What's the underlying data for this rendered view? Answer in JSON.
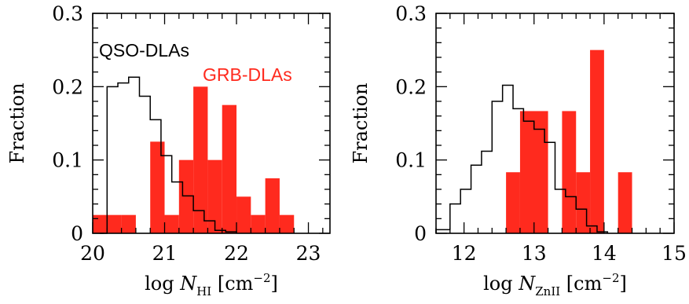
{
  "chart_data": [
    {
      "type": "histogram",
      "ylabel": "Fraction",
      "xlabel": {
        "prefix": "log ",
        "var": "N",
        "sub": "HI",
        "unit_open": " [cm",
        "sup": "−2",
        "unit_close": "]"
      },
      "xlim": [
        20,
        23.3
      ],
      "ylim": [
        0,
        0.3
      ],
      "xticks": [
        "20",
        "21",
        "22",
        "23"
      ],
      "yticks": [
        "0",
        "0.1",
        "0.2",
        "0.3"
      ],
      "legend": [
        {
          "name": "QSO-DLAs",
          "color": "#000000"
        },
        {
          "name": "GRB-DLAs",
          "color": "#ff2a1e"
        }
      ],
      "series": [
        {
          "name": "QSO-DLAs",
          "style": "step",
          "color": "#000000",
          "bins": [
            [
              20.1,
              20.2,
              0.0
            ],
            [
              20.2,
              20.35,
              0.2
            ],
            [
              20.35,
              20.5,
              0.205
            ],
            [
              20.5,
              20.65,
              0.213
            ],
            [
              20.65,
              20.8,
              0.187
            ],
            [
              20.8,
              20.95,
              0.155
            ],
            [
              20.95,
              21.1,
              0.106
            ],
            [
              21.1,
              21.25,
              0.07
            ],
            [
              21.25,
              21.4,
              0.051
            ],
            [
              21.4,
              21.55,
              0.031
            ],
            [
              21.55,
              21.7,
              0.017
            ],
            [
              21.7,
              21.85,
              0.004
            ],
            [
              21.85,
              22.0,
              0.002
            ]
          ]
        },
        {
          "name": "GRB-DLAs",
          "style": "filled",
          "color": "#ff2a1e",
          "bins": [
            [
              20.0,
              20.4,
              0.025
            ],
            [
              20.4,
              20.6,
              0.025
            ],
            [
              20.8,
              21.0,
              0.125
            ],
            [
              21.0,
              21.2,
              0.025
            ],
            [
              21.2,
              21.4,
              0.1
            ],
            [
              21.4,
              21.6,
              0.2
            ],
            [
              21.6,
              21.8,
              0.1
            ],
            [
              21.8,
              22.0,
              0.175
            ],
            [
              22.0,
              22.2,
              0.05
            ],
            [
              22.2,
              22.4,
              0.025
            ],
            [
              22.4,
              22.6,
              0.075
            ],
            [
              22.6,
              22.8,
              0.025
            ]
          ]
        }
      ]
    },
    {
      "type": "histogram",
      "ylabel": "Fraction",
      "xlabel": {
        "prefix": "log ",
        "var": "N",
        "sub": "ZnII",
        "unit_open": " [cm",
        "sup": "−2",
        "unit_close": "]"
      },
      "xlim": [
        11.6,
        15
      ],
      "ylim": [
        0,
        0.3
      ],
      "xticks": [
        "12",
        "13",
        "14",
        "15"
      ],
      "yticks": [
        "0",
        "0.1",
        "0.2",
        "0.3"
      ],
      "series": [
        {
          "name": "QSO-DLAs",
          "style": "step",
          "color": "#000000",
          "bins": [
            [
              11.6,
              11.8,
              0.005
            ],
            [
              11.8,
              11.95,
              0.04
            ],
            [
              11.95,
              12.1,
              0.06
            ],
            [
              12.1,
              12.25,
              0.093
            ],
            [
              12.25,
              12.4,
              0.112
            ],
            [
              12.4,
              12.55,
              0.18
            ],
            [
              12.55,
              12.7,
              0.202
            ],
            [
              12.7,
              12.85,
              0.17
            ],
            [
              12.85,
              13.0,
              0.153
            ],
            [
              13.0,
              13.15,
              0.142
            ],
            [
              13.15,
              13.3,
              0.124
            ],
            [
              13.3,
              13.45,
              0.06
            ],
            [
              13.45,
              13.6,
              0.05
            ],
            [
              13.6,
              13.75,
              0.033
            ],
            [
              13.75,
              13.9,
              0.01
            ],
            [
              13.9,
              14.05,
              0.002
            ]
          ]
        },
        {
          "name": "GRB-DLAs",
          "style": "filled",
          "color": "#ff2a1e",
          "bins": [
            [
              12.6,
              12.8,
              0.0833
            ],
            [
              12.8,
              13.2,
              0.1667
            ],
            [
              13.4,
              13.6,
              0.1667
            ],
            [
              13.6,
              13.8,
              0.0833
            ],
            [
              13.8,
              14.0,
              0.25
            ],
            [
              14.2,
              14.4,
              0.0833
            ]
          ]
        }
      ]
    }
  ]
}
